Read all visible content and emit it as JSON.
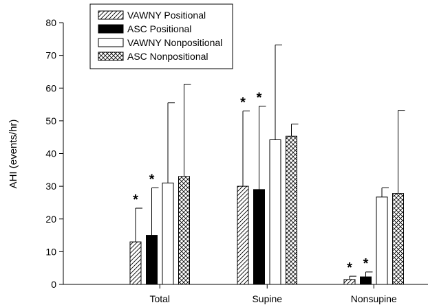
{
  "chart_data": {
    "type": "bar",
    "title": "",
    "xlabel": "",
    "ylabel": "AHI (events/hr)",
    "ylim": [
      0,
      80
    ],
    "yticks": [
      0,
      10,
      20,
      30,
      40,
      50,
      60,
      70,
      80
    ],
    "grid": false,
    "legend_position": "top-left",
    "categories": [
      "Total",
      "Supine",
      "Nonsupine"
    ],
    "significance_marker": "*",
    "series": [
      {
        "name": "VAWNY Positional",
        "pattern": "diagonal-hatch",
        "color": "#ffffff",
        "values": [
          13.0,
          30.0,
          1.5
        ],
        "error_upper": [
          23.3,
          53.0,
          2.5
        ],
        "significant": [
          true,
          true,
          true
        ]
      },
      {
        "name": "ASC Positional",
        "pattern": "solid",
        "color": "#000000",
        "values": [
          15.0,
          29.0,
          2.3
        ],
        "error_upper": [
          29.5,
          54.5,
          3.8
        ],
        "significant": [
          true,
          true,
          true
        ]
      },
      {
        "name": "VAWNY Nonpositional",
        "pattern": "open",
        "color": "#ffffff",
        "values": [
          31.0,
          44.2,
          26.7
        ],
        "error_upper": [
          55.5,
          73.2,
          29.5
        ],
        "significant": [
          false,
          false,
          false
        ]
      },
      {
        "name": "ASC Nonpositional",
        "pattern": "crosshatch",
        "color": "#ffffff",
        "values": [
          33.0,
          45.3,
          27.8
        ],
        "error_upper": [
          61.2,
          49.0,
          53.2
        ],
        "significant": [
          false,
          false,
          false
        ]
      }
    ]
  }
}
